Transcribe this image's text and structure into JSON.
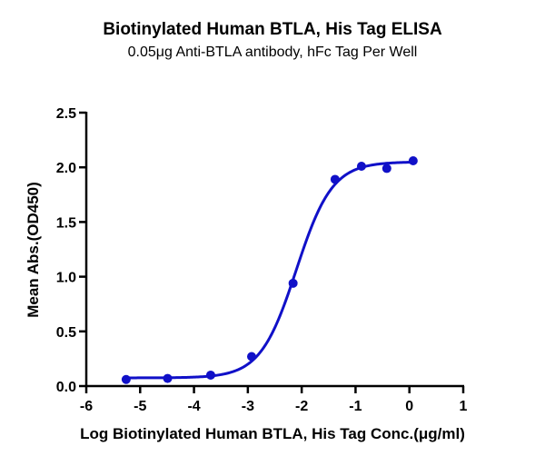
{
  "chart_data": {
    "type": "scatter",
    "title": "Biotinylated Human BTLA, His Tag ELISA",
    "subtitle": "0.05μg Anti-BTLA antibody, hFc Tag Per Well",
    "xlabel": "Log Biotinylated Human BTLA, His Tag Conc.(μg/ml)",
    "ylabel": "Mean Abs.(OD450)",
    "xlim": [
      -6,
      1
    ],
    "ylim": [
      0,
      2.5
    ],
    "xticks": [
      "-6",
      "-5",
      "-4",
      "-3",
      "-2",
      "-1",
      "0",
      "1"
    ],
    "yticks": [
      "0.0",
      "0.5",
      "1.0",
      "1.5",
      "2.0",
      "2.5"
    ],
    "grid": false,
    "legend": null,
    "series": [
      {
        "name": "Mean Abs.(OD450)",
        "color": "#1010c8",
        "x": [
          -5.26,
          -4.49,
          -3.69,
          -2.93,
          -2.16,
          -1.38,
          -0.89,
          -0.42,
          0.07
        ],
        "y": [
          0.06,
          0.07,
          0.1,
          0.27,
          0.94,
          1.89,
          2.01,
          1.99,
          2.06
        ]
      }
    ],
    "fit": {
      "type": "4PL sigmoid",
      "bottom": 0.075,
      "top": 2.05,
      "logEC50": -2.1,
      "hill": 1.3,
      "x_range": [
        -5.26,
        0.07
      ]
    }
  },
  "colors": {
    "series": "#1010c8",
    "axis": "#000000"
  }
}
